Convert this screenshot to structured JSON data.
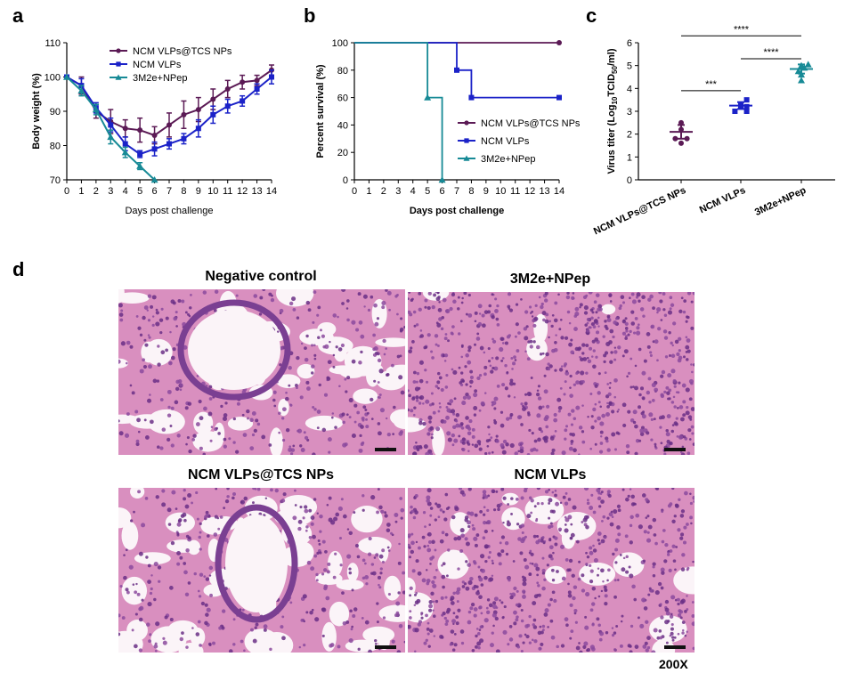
{
  "panels": {
    "a": "a",
    "b": "b",
    "c": "c",
    "d": "d"
  },
  "colors": {
    "ncm_tcs": "#5b1a55",
    "ncm": "#1b22c8",
    "m2e": "#178a96",
    "tissue_bg": "#f3e3ee",
    "tissue_pink": "#e7a5c8",
    "tissue_purple": "#8b4a9e",
    "scale_bar": "#111111"
  },
  "chart_data": [
    {
      "panel": "a",
      "type": "line",
      "xlabel": "Days post challenge",
      "ylabel": "Body weight (%)",
      "xlim": [
        0,
        14
      ],
      "ylim": [
        70,
        110
      ],
      "x_ticks": [
        0,
        1,
        2,
        3,
        4,
        5,
        6,
        7,
        8,
        9,
        10,
        11,
        12,
        13,
        14
      ],
      "y_ticks": [
        70,
        80,
        90,
        100,
        110
      ],
      "legend_position": "top-right",
      "error_bars": true,
      "series": [
        {
          "name": "NCM VLPs@TCS NPs",
          "marker": "circle",
          "x": [
            0,
            1,
            2,
            3,
            4,
            5,
            6,
            7,
            8,
            9,
            10,
            11,
            12,
            13,
            14
          ],
          "y": [
            100,
            97.5,
            90,
            87,
            85,
            84.5,
            83,
            86,
            89,
            90.5,
            93.5,
            96.5,
            98.5,
            99,
            102
          ],
          "err": [
            0,
            2.5,
            2,
            3.5,
            2.5,
            3.5,
            2.5,
            3.5,
            4,
            3.5,
            3,
            2.5,
            2,
            1.5,
            1.5
          ]
        },
        {
          "name": "NCM VLPs",
          "marker": "square",
          "x": [
            0,
            1,
            2,
            3,
            4,
            5,
            6,
            7,
            8,
            9,
            10,
            11,
            12,
            13,
            14
          ],
          "y": [
            100,
            97.5,
            91,
            86,
            80.5,
            77.5,
            79,
            80.5,
            82,
            85,
            89,
            91.5,
            93,
            96.5,
            100
          ],
          "err": [
            0,
            2,
            1.5,
            2,
            2,
            1,
            2,
            1.5,
            1.5,
            2.5,
            2.5,
            2,
            1.5,
            1.5,
            2
          ]
        },
        {
          "name": "3M2e+NPep",
          "marker": "triangle",
          "x": [
            0,
            1,
            2,
            3,
            4,
            5,
            6
          ],
          "y": [
            100,
            96,
            90.5,
            82.5,
            78,
            74,
            70
          ],
          "err": [
            0,
            1.5,
            1.5,
            2,
            1.5,
            1,
            0
          ]
        }
      ]
    },
    {
      "panel": "b",
      "type": "line",
      "subtype": "survival",
      "xlabel": "Days post challenge",
      "ylabel": "Percent survival (%)",
      "xlim": [
        0,
        14
      ],
      "ylim": [
        0,
        100
      ],
      "x_ticks": [
        0,
        1,
        2,
        3,
        4,
        5,
        6,
        7,
        8,
        9,
        10,
        11,
        12,
        13,
        14
      ],
      "y_ticks": [
        0,
        20,
        40,
        60,
        80,
        100
      ],
      "legend_position": "right",
      "series": [
        {
          "name": "NCM VLPs@TCS NPs",
          "marker": "circle",
          "steps": [
            [
              0,
              100
            ],
            [
              14,
              100
            ]
          ],
          "markers": [
            [
              14,
              100
            ]
          ]
        },
        {
          "name": "NCM VLPs",
          "marker": "square",
          "steps": [
            [
              0,
              100
            ],
            [
              7,
              100
            ],
            [
              7,
              80
            ],
            [
              8,
              80
            ],
            [
              8,
              60
            ],
            [
              14,
              60
            ]
          ],
          "markers": [
            [
              7,
              80
            ],
            [
              8,
              60
            ],
            [
              14,
              60
            ]
          ]
        },
        {
          "name": "3M2e+NPep",
          "marker": "triangle",
          "steps": [
            [
              0,
              100
            ],
            [
              5,
              100
            ],
            [
              5,
              60
            ],
            [
              6,
              60
            ],
            [
              6,
              0
            ]
          ],
          "markers": [
            [
              5,
              60
            ],
            [
              6,
              0
            ]
          ]
        }
      ]
    },
    {
      "panel": "c",
      "type": "scatter",
      "ylabel_main": "Virus titer (Log",
      "ylabel_sub": "10",
      "ylabel_mid": "TCID",
      "ylabel_sub2": "50",
      "ylabel_end": "/ml)",
      "ylim": [
        0,
        6
      ],
      "y_ticks": [
        0,
        1,
        2,
        3,
        4,
        5,
        6
      ],
      "categories": [
        "NCM VLPs@TCS NPs",
        "NCM VLPs",
        "3M2e+NPep"
      ],
      "series": [
        {
          "name": "NCM VLPs@TCS NPs",
          "marker": "circle",
          "mean": 2.1,
          "sd": 0.3,
          "points": [
            [
              -0.3,
              1.8
            ],
            [
              0,
              2.5
            ],
            [
              0,
              2.2
            ],
            [
              0,
              1.6
            ],
            [
              0.3,
              1.8
            ]
          ]
        },
        {
          "name": "NCM VLPs",
          "marker": "square",
          "mean": 3.25,
          "sd": 0.15,
          "points": [
            [
              -0.3,
              3.0
            ],
            [
              0,
              3.25
            ],
            [
              0.3,
              3.5
            ],
            [
              0.3,
              3.2
            ],
            [
              0.3,
              3.0
            ]
          ]
        },
        {
          "name": "3M2e+NPep",
          "marker": "triangle",
          "mean": 4.85,
          "sd": 0.2,
          "points": [
            [
              0,
              5.0
            ],
            [
              -0.15,
              4.75
            ],
            [
              0.15,
              4.9
            ],
            [
              0,
              4.6
            ],
            [
              0,
              4.35
            ],
            [
              0.35,
              5.05
            ]
          ]
        }
      ],
      "significance": [
        {
          "from": 0,
          "to": 2,
          "y": 6.3,
          "label": "****"
        },
        {
          "from": 0,
          "to": 1,
          "y": 3.9,
          "label": "***"
        },
        {
          "from": 1,
          "to": 2,
          "y": 5.3,
          "label": "****"
        }
      ]
    }
  ],
  "histology": {
    "titles": [
      "Negative control",
      "3M2e+NPep",
      "NCM VLPs@TCS NPs",
      "NCM VLPs"
    ],
    "magnification": "200X"
  }
}
